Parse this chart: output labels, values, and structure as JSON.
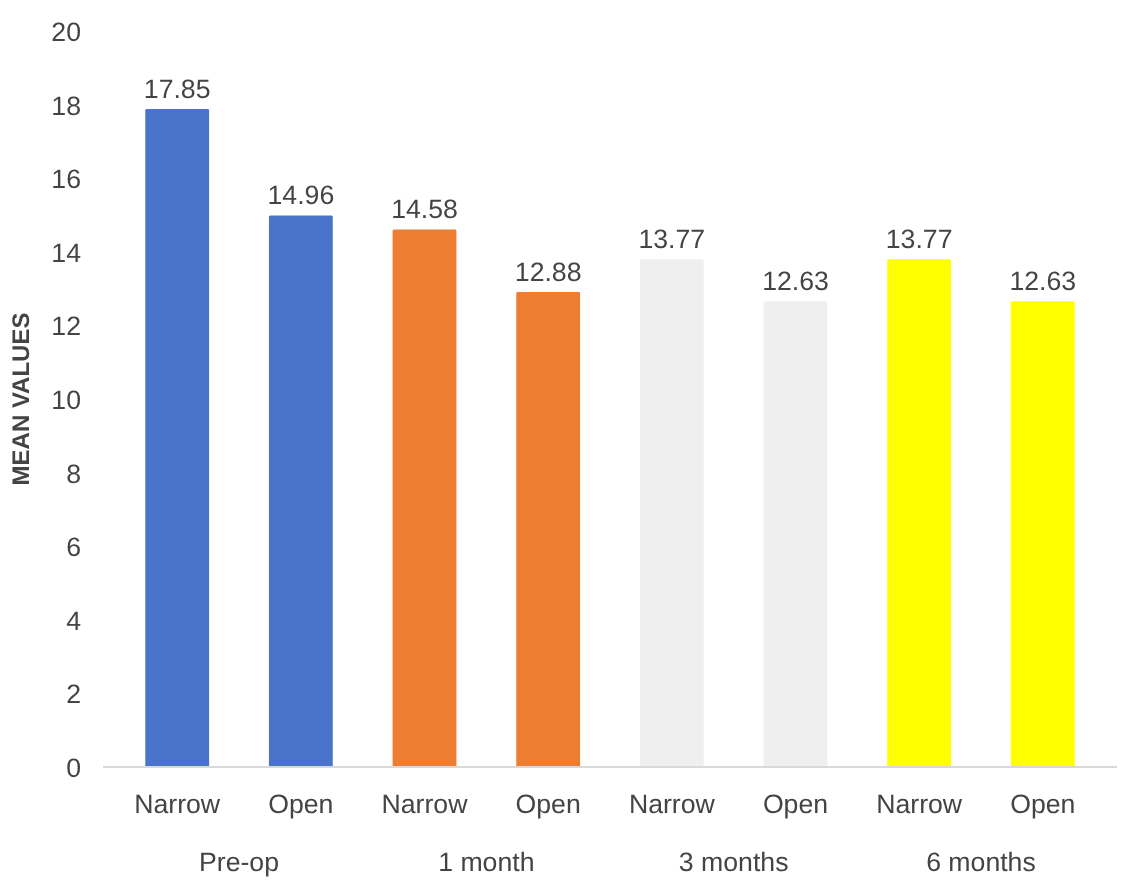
{
  "chart_data": {
    "type": "bar",
    "ylabel": "MEAN VALUES",
    "categories": [
      "Narrow",
      "Open",
      "Narrow",
      "Open",
      "Narrow",
      "Open",
      "Narrow",
      "Open"
    ],
    "values": [
      17.85,
      14.96,
      14.58,
      12.88,
      13.77,
      12.63,
      13.77,
      12.63
    ],
    "colors": [
      "#4a74cc",
      "#4a74cc",
      "#ed7d31",
      "#ed7d31",
      "#efefef",
      "#efefef",
      "#ffff00",
      "#ffff00"
    ],
    "annotations": [
      "Pre-op",
      "1 month",
      "3 months",
      "6 months"
    ],
    "ylim": [
      0,
      20
    ],
    "yticks": [
      0,
      2,
      4,
      6,
      8,
      10,
      12,
      14,
      16,
      18,
      20
    ],
    "data_labels": true,
    "grid": false
  }
}
